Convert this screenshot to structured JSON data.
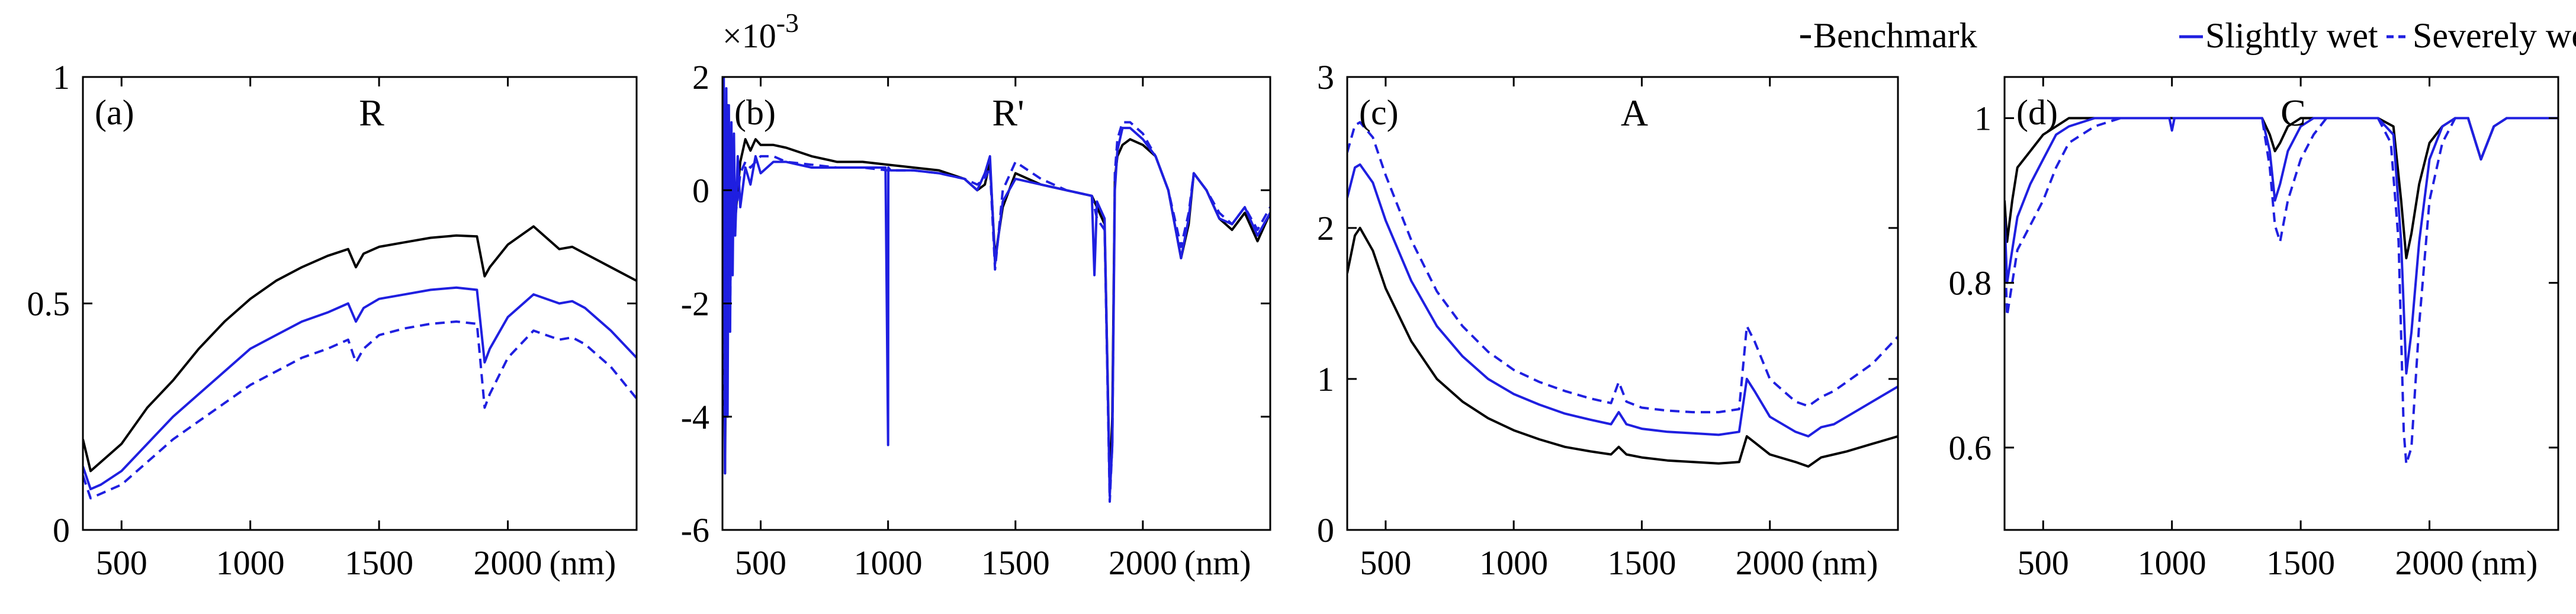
{
  "legend": {
    "entries": [
      {
        "key": "benchmark",
        "label": "Benchmark",
        "color": "#000000",
        "style": "solid"
      },
      {
        "key": "slightly",
        "label": "Slightly wet",
        "color": "#1f1fe0",
        "style": "solid"
      },
      {
        "key": "severely",
        "label": "Severely wet",
        "color": "#1f1fe0",
        "style": "dashed"
      }
    ]
  },
  "chart_data": [
    {
      "type": "line",
      "panel_label": "(a)",
      "title": "R",
      "x_unit_label": "(nm)",
      "xlim": [
        350,
        2500
      ],
      "ylim": [
        0,
        1
      ],
      "xticks": [
        500,
        1000,
        1500,
        2000
      ],
      "yticks": [
        0,
        0.5,
        1
      ],
      "ytick_labels": [
        "0",
        "0.5",
        "1"
      ],
      "exponent_label": null,
      "series": [
        {
          "name": "Benchmark",
          "key": "benchmark",
          "x": [
            350,
            380,
            420,
            500,
            600,
            700,
            800,
            900,
            1000,
            1100,
            1200,
            1300,
            1380,
            1410,
            1440,
            1500,
            1600,
            1700,
            1800,
            1880,
            1910,
            1930,
            2000,
            2100,
            2200,
            2250,
            2300,
            2400,
            2500
          ],
          "y": [
            0.2,
            0.13,
            0.15,
            0.19,
            0.27,
            0.33,
            0.4,
            0.46,
            0.51,
            0.55,
            0.58,
            0.605,
            0.62,
            0.58,
            0.61,
            0.625,
            0.635,
            0.645,
            0.65,
            0.648,
            0.56,
            0.58,
            0.63,
            0.67,
            0.62,
            0.625,
            0.61,
            0.58,
            0.55
          ]
        },
        {
          "name": "Slightly wet",
          "key": "slightly",
          "x": [
            350,
            380,
            420,
            500,
            600,
            700,
            800,
            900,
            1000,
            1100,
            1200,
            1300,
            1380,
            1410,
            1440,
            1500,
            1600,
            1700,
            1800,
            1880,
            1910,
            1930,
            2000,
            2100,
            2200,
            2250,
            2300,
            2400,
            2500
          ],
          "y": [
            0.14,
            0.09,
            0.1,
            0.13,
            0.19,
            0.25,
            0.3,
            0.35,
            0.4,
            0.43,
            0.46,
            0.48,
            0.5,
            0.46,
            0.49,
            0.51,
            0.52,
            0.53,
            0.535,
            0.53,
            0.37,
            0.4,
            0.47,
            0.52,
            0.5,
            0.505,
            0.49,
            0.44,
            0.38
          ]
        },
        {
          "name": "Severely wet",
          "key": "severely",
          "x": [
            350,
            380,
            420,
            500,
            600,
            700,
            800,
            900,
            1000,
            1100,
            1200,
            1300,
            1380,
            1410,
            1440,
            1500,
            1600,
            1700,
            1800,
            1880,
            1910,
            1930,
            2000,
            2100,
            2200,
            2250,
            2300,
            2400,
            2500
          ],
          "y": [
            0.12,
            0.07,
            0.08,
            0.1,
            0.15,
            0.2,
            0.24,
            0.28,
            0.32,
            0.35,
            0.38,
            0.4,
            0.42,
            0.37,
            0.4,
            0.43,
            0.445,
            0.455,
            0.46,
            0.455,
            0.27,
            0.3,
            0.38,
            0.44,
            0.42,
            0.425,
            0.41,
            0.36,
            0.29
          ]
        }
      ]
    },
    {
      "type": "line",
      "panel_label": "(b)",
      "title": "R'",
      "x_unit_label": "(nm)",
      "xlim": [
        350,
        2500
      ],
      "ylim": [
        -6,
        2
      ],
      "xticks": [
        500,
        1000,
        1500,
        2000
      ],
      "yticks": [
        -6,
        -4,
        -2,
        0,
        2
      ],
      "ytick_labels": [
        "-6",
        "-4",
        "-2",
        "0",
        "2"
      ],
      "exponent_label": "×10",
      "exponent_power": "-3",
      "series": [
        {
          "name": "Benchmark",
          "key": "benchmark",
          "x": [
            350,
            360,
            370,
            380,
            390,
            400,
            420,
            440,
            460,
            480,
            500,
            550,
            600,
            700,
            800,
            900,
            1000,
            1100,
            1200,
            1300,
            1350,
            1380,
            1400,
            1420,
            1450,
            1500,
            1600,
            1700,
            1800,
            1820,
            1850,
            1870,
            1880,
            1890,
            1900,
            1920,
            1950,
            2000,
            2050,
            2100,
            2150,
            2180,
            2200,
            2250,
            2300,
            2350,
            2400,
            2450,
            2500
          ],
          "y": [
            0.5,
            -5.0,
            1.5,
            -1.0,
            0.8,
            -0.5,
            0.5,
            0.9,
            0.7,
            0.9,
            0.8,
            0.8,
            0.75,
            0.6,
            0.5,
            0.5,
            0.45,
            0.4,
            0.35,
            0.2,
            0.0,
            0.1,
            0.5,
            -1.2,
            -0.3,
            0.3,
            0.1,
            0.0,
            -0.1,
            -0.3,
            -0.6,
            -5.2,
            -4.0,
            0.2,
            0.6,
            0.8,
            0.9,
            0.8,
            0.6,
            0.0,
            -1.2,
            -0.6,
            0.3,
            0.0,
            -0.5,
            -0.7,
            -0.4,
            -0.9,
            -0.4
          ]
        },
        {
          "name": "Slightly wet",
          "key": "slightly",
          "x": [
            350,
            355,
            360,
            365,
            370,
            375,
            380,
            385,
            390,
            395,
            400,
            410,
            420,
            440,
            460,
            480,
            500,
            550,
            600,
            700,
            800,
            900,
            990,
            1000,
            1001,
            1010,
            1100,
            1200,
            1300,
            1350,
            1380,
            1400,
            1420,
            1450,
            1500,
            1600,
            1700,
            1800,
            1810,
            1820,
            1850,
            1870,
            1880,
            1890,
            1900,
            1920,
            1950,
            2000,
            2050,
            2100,
            2150,
            2180,
            2200,
            2250,
            2300,
            2350,
            2400,
            2450,
            2500
          ],
          "y": [
            0.0,
            2.0,
            -5.0,
            1.8,
            -4.0,
            1.5,
            -2.5,
            1.2,
            -1.5,
            1.0,
            -0.8,
            0.6,
            -0.3,
            0.4,
            0.1,
            0.6,
            0.3,
            0.5,
            0.5,
            0.4,
            0.4,
            0.4,
            0.4,
            -4.5,
            0.4,
            0.35,
            0.35,
            0.3,
            0.2,
            0.0,
            0.3,
            0.6,
            -1.3,
            -0.2,
            0.2,
            0.1,
            0.0,
            -0.1,
            -1.5,
            -0.2,
            -0.5,
            -5.4,
            -4.5,
            0.0,
            0.7,
            1.1,
            1.1,
            0.9,
            0.6,
            0.0,
            -1.2,
            -0.5,
            0.3,
            0.0,
            -0.5,
            -0.6,
            -0.3,
            -0.8,
            -0.4
          ]
        },
        {
          "name": "Severely wet",
          "key": "severely",
          "x": [
            350,
            360,
            370,
            380,
            390,
            400,
            420,
            440,
            460,
            480,
            500,
            550,
            600,
            700,
            800,
            900,
            1000,
            1100,
            1200,
            1300,
            1350,
            1380,
            1400,
            1420,
            1450,
            1500,
            1600,
            1700,
            1800,
            1820,
            1850,
            1870,
            1880,
            1890,
            1900,
            1920,
            1950,
            2000,
            2050,
            2100,
            2150,
            2180,
            2200,
            2250,
            2300,
            2350,
            2400,
            2450,
            2500
          ],
          "y": [
            0.0,
            -4.5,
            1.5,
            -2.0,
            0.7,
            -0.5,
            0.3,
            0.5,
            0.4,
            0.5,
            0.6,
            0.6,
            0.5,
            0.45,
            0.4,
            0.4,
            0.35,
            0.35,
            0.3,
            0.2,
            0.1,
            0.2,
            0.4,
            -1.4,
            0.0,
            0.5,
            0.2,
            0.0,
            -0.1,
            -0.5,
            -0.7,
            -5.5,
            -4.5,
            0.3,
            0.9,
            1.2,
            1.2,
            1.0,
            0.6,
            0.0,
            -1.0,
            -0.4,
            0.3,
            0.0,
            -0.4,
            -0.6,
            -0.3,
            -0.7,
            -0.3
          ]
        }
      ]
    },
    {
      "type": "line",
      "panel_label": "(c)",
      "title": "A",
      "x_unit_label": "(nm)",
      "xlim": [
        350,
        2500
      ],
      "ylim": [
        0,
        3
      ],
      "xticks": [
        500,
        1000,
        1500,
        2000
      ],
      "yticks": [
        0,
        1,
        2,
        3
      ],
      "ytick_labels": [
        "0",
        "1",
        "2",
        "3"
      ],
      "exponent_label": null,
      "series": [
        {
          "name": "Benchmark",
          "key": "benchmark",
          "x": [
            350,
            380,
            400,
            450,
            500,
            600,
            700,
            800,
            900,
            1000,
            1100,
            1200,
            1300,
            1380,
            1410,
            1440,
            1500,
            1600,
            1700,
            1800,
            1880,
            1910,
            1940,
            2000,
            2100,
            2150,
            2200,
            2250,
            2300,
            2400,
            2500
          ],
          "y": [
            1.7,
            1.95,
            2.0,
            1.85,
            1.6,
            1.25,
            1.0,
            0.85,
            0.74,
            0.66,
            0.6,
            0.55,
            0.52,
            0.5,
            0.55,
            0.5,
            0.48,
            0.46,
            0.45,
            0.44,
            0.45,
            0.62,
            0.58,
            0.5,
            0.45,
            0.42,
            0.48,
            0.5,
            0.52,
            0.57,
            0.62
          ]
        },
        {
          "name": "Slightly wet",
          "key": "slightly",
          "x": [
            350,
            380,
            400,
            450,
            500,
            600,
            700,
            800,
            900,
            1000,
            1100,
            1200,
            1300,
            1380,
            1410,
            1440,
            1500,
            1600,
            1700,
            1800,
            1880,
            1910,
            1940,
            2000,
            2100,
            2150,
            2200,
            2250,
            2300,
            2400,
            2500
          ],
          "y": [
            2.2,
            2.4,
            2.42,
            2.3,
            2.05,
            1.65,
            1.35,
            1.15,
            1.0,
            0.9,
            0.83,
            0.77,
            0.73,
            0.7,
            0.78,
            0.7,
            0.67,
            0.65,
            0.64,
            0.63,
            0.65,
            1.0,
            0.92,
            0.75,
            0.65,
            0.62,
            0.68,
            0.7,
            0.75,
            0.85,
            0.95
          ]
        },
        {
          "name": "Severely wet",
          "key": "severely",
          "x": [
            350,
            380,
            400,
            450,
            500,
            600,
            700,
            800,
            900,
            1000,
            1100,
            1200,
            1300,
            1380,
            1410,
            1440,
            1500,
            1600,
            1700,
            1800,
            1880,
            1910,
            1940,
            2000,
            2100,
            2150,
            2200,
            2250,
            2300,
            2400,
            2500
          ],
          "y": [
            2.5,
            2.68,
            2.7,
            2.6,
            2.35,
            1.92,
            1.58,
            1.35,
            1.18,
            1.06,
            0.98,
            0.92,
            0.87,
            0.84,
            0.98,
            0.85,
            0.81,
            0.79,
            0.78,
            0.78,
            0.8,
            1.35,
            1.25,
            1.0,
            0.85,
            0.82,
            0.88,
            0.92,
            0.98,
            1.1,
            1.28
          ]
        }
      ]
    },
    {
      "type": "line",
      "panel_label": "(d)",
      "title": "C",
      "x_unit_label": "(nm)",
      "xlim": [
        350,
        2500
      ],
      "ylim": [
        0.5,
        1.05
      ],
      "xticks": [
        500,
        1000,
        1500,
        2000
      ],
      "yticks": [
        0.6,
        0.8,
        1.0
      ],
      "ytick_labels": [
        "0.6",
        "0.8",
        "1"
      ],
      "exponent_label": null,
      "series": [
        {
          "name": "Benchmark",
          "key": "benchmark",
          "x": [
            350,
            360,
            380,
            400,
            450,
            500,
            550,
            600,
            700,
            800,
            1000,
            1200,
            1350,
            1380,
            1400,
            1420,
            1450,
            1500,
            1600,
            1800,
            1860,
            1890,
            1910,
            1930,
            1960,
            2000,
            2050,
            2100,
            2150,
            2180,
            2200,
            2250,
            2300,
            2500
          ],
          "y": [
            0.9,
            0.85,
            0.9,
            0.94,
            0.96,
            0.98,
            0.99,
            1.0,
            1.0,
            1.0,
            1.0,
            1.0,
            1.0,
            0.98,
            0.96,
            0.97,
            0.99,
            1.0,
            1.0,
            1.0,
            0.99,
            0.9,
            0.83,
            0.86,
            0.92,
            0.97,
            0.99,
            1.0,
            1.0,
            0.97,
            0.95,
            0.99,
            1.0,
            1.0
          ]
        },
        {
          "name": "Slightly wet",
          "key": "slightly",
          "x": [
            350,
            360,
            380,
            400,
            450,
            500,
            550,
            600,
            700,
            800,
            990,
            1000,
            1010,
            1200,
            1350,
            1380,
            1400,
            1420,
            1450,
            1500,
            1550,
            1600,
            1800,
            1860,
            1890,
            1910,
            1930,
            1960,
            2000,
            2050,
            2100,
            2150,
            2180,
            2200,
            2250,
            2300,
            2500
          ],
          "y": [
            0.88,
            0.8,
            0.84,
            0.88,
            0.92,
            0.95,
            0.98,
            0.99,
            1.0,
            1.0,
            1.0,
            0.985,
            1.0,
            1.0,
            1.0,
            0.96,
            0.9,
            0.92,
            0.96,
            0.99,
            1.0,
            1.0,
            1.0,
            0.98,
            0.85,
            0.69,
            0.74,
            0.85,
            0.95,
            0.99,
            1.0,
            1.0,
            0.97,
            0.95,
            0.99,
            1.0,
            1.0
          ]
        },
        {
          "name": "Severely wet",
          "key": "severely",
          "x": [
            350,
            360,
            380,
            400,
            450,
            500,
            550,
            600,
            700,
            800,
            1000,
            1200,
            1350,
            1380,
            1400,
            1420,
            1450,
            1500,
            1550,
            1600,
            1800,
            1850,
            1880,
            1900,
            1910,
            1930,
            1960,
            2000,
            2050,
            2100,
            2150,
            2180,
            2200,
            2250,
            2300,
            2500
          ],
          "y": [
            0.85,
            0.76,
            0.8,
            0.84,
            0.87,
            0.9,
            0.94,
            0.97,
            0.99,
            1.0,
            1.0,
            1.0,
            1.0,
            0.94,
            0.87,
            0.85,
            0.9,
            0.95,
            0.98,
            1.0,
            1.0,
            0.97,
            0.85,
            0.62,
            0.58,
            0.6,
            0.75,
            0.9,
            0.97,
            1.0,
            1.0,
            0.97,
            0.95,
            0.99,
            1.0,
            1.0
          ]
        }
      ]
    }
  ]
}
